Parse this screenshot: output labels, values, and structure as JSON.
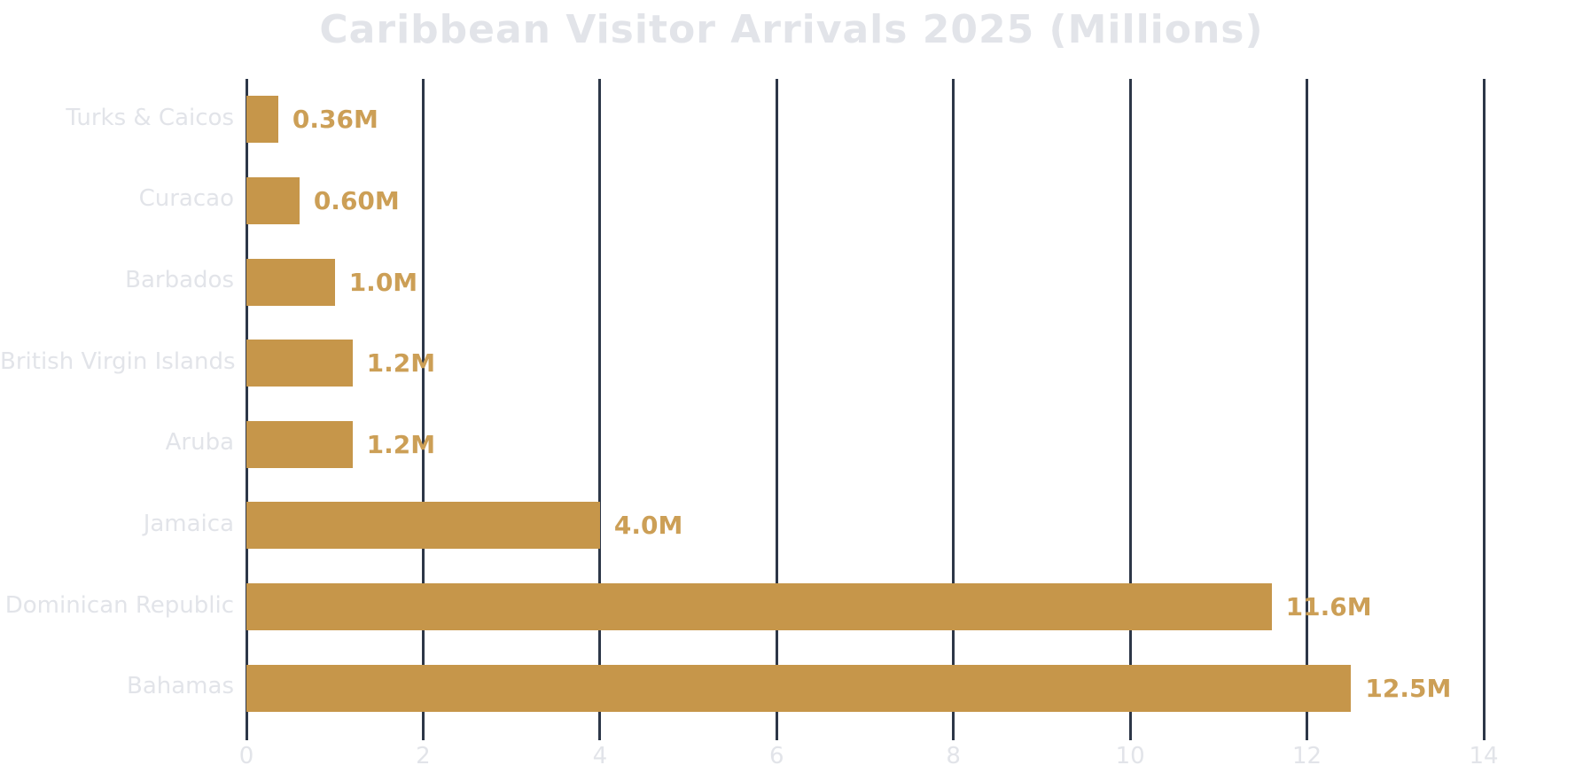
{
  "title": "Caribbean Visitor Arrivals 2025 (Millions)",
  "colors": {
    "background": "#FFFFFF",
    "bar": "#C6964A",
    "value_label": "#CC9F56",
    "grid": "#2D3748",
    "light_text": "#E2E4E9"
  },
  "chart_data": {
    "type": "bar",
    "orientation": "horizontal",
    "title": "Caribbean Visitor Arrivals 2025 (Millions)",
    "categories": [
      "Turks & Caicos",
      "Curacao",
      "Barbados",
      "British Virgin Islands",
      "Aruba",
      "Jamaica",
      "Dominican Republic",
      "Bahamas"
    ],
    "values": [
      0.36,
      0.6,
      1.0,
      1.2,
      1.2,
      4.0,
      11.6,
      12.5
    ],
    "value_labels": [
      "0.36M",
      "0.60M",
      "1.0M",
      "1.2M",
      "1.2M",
      "4.0M",
      "11.6M",
      "12.5M"
    ],
    "xlabel": "",
    "ylabel": "",
    "xlim": [
      0,
      14
    ],
    "xticks": [
      0,
      2,
      4,
      6,
      8,
      10,
      12,
      14
    ],
    "xtick_labels": [
      "0",
      "2",
      "4",
      "6",
      "8",
      "10",
      "12",
      "14"
    ],
    "grid": "vertical gridlines on, horizontal off",
    "legend": "none"
  }
}
